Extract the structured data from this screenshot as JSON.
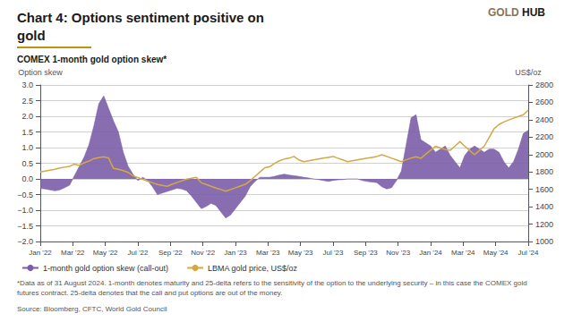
{
  "chart_data": {
    "type": "line",
    "title": "Chart 4: Options sentiment positive on\ngold",
    "subtitle": "COMEX 1-month gold option skew*",
    "ylabel": "Option skew",
    "y2label": "US$/oz",
    "x": [
      0,
      0.3,
      0.6,
      0.9,
      1.2,
      1.5,
      1.8,
      2.1,
      2.4,
      2.7,
      3,
      3.3,
      3.6,
      3.9,
      4.2,
      4.5,
      4.8,
      5.1,
      5.4,
      5.7,
      6,
      6.3,
      6.6,
      6.9,
      7.2,
      7.5,
      7.8,
      8.1,
      8.4,
      8.7,
      9,
      9.3,
      9.6,
      9.9,
      10.2,
      10.5,
      10.8,
      11.1,
      11.4,
      11.7,
      12,
      12.3,
      12.6,
      12.9,
      13.2,
      13.5,
      13.8,
      14.1,
      14.4,
      14.7,
      15,
      15.3,
      15.6,
      15.9,
      16.2,
      16.5,
      16.8,
      17.1,
      17.4,
      17.7,
      18,
      18.3,
      18.6,
      18.9,
      19.2,
      19.5,
      19.8,
      20.1,
      20.4,
      20.7,
      21,
      21.3,
      21.6,
      21.9,
      22.2,
      22.5,
      22.8,
      23.1,
      23.4,
      23.7,
      24,
      24.3,
      24.6,
      24.9,
      25.2,
      25.5,
      25.8,
      26.1,
      26.4,
      26.7,
      27,
      27.3,
      27.6,
      27.9,
      28.2,
      28.5,
      28.8,
      29.1,
      29.4,
      29.7,
      30
    ],
    "xlim": [
      0,
      30
    ],
    "xticks": [
      {
        "value": 0,
        "label": "Jan '22"
      },
      {
        "value": 2,
        "label": "Mar '22"
      },
      {
        "value": 4,
        "label": "May '22"
      },
      {
        "value": 6,
        "label": "Jul '22"
      },
      {
        "value": 8,
        "label": "Sep '22"
      },
      {
        "value": 10,
        "label": "Nov '22"
      },
      {
        "value": 12,
        "label": "Jan '23"
      },
      {
        "value": 14,
        "label": "Mar '23"
      },
      {
        "value": 16,
        "label": "May '23"
      },
      {
        "value": 18,
        "label": "Jul '23"
      },
      {
        "value": 20,
        "label": "Sep '23"
      },
      {
        "value": 22,
        "label": "Nov '23"
      },
      {
        "value": 24,
        "label": "Jan '24"
      },
      {
        "value": 26,
        "label": "Mar '24"
      },
      {
        "value": 28,
        "label": "May '24"
      },
      {
        "value": 30,
        "label": "Jul '24"
      }
    ],
    "ylim": [
      -2.0,
      3.0
    ],
    "yticks": [
      {
        "value": -2.0,
        "label": "−2.0"
      },
      {
        "value": -1.5,
        "label": "−1.5"
      },
      {
        "value": -1.0,
        "label": "−1.0"
      },
      {
        "value": -0.5,
        "label": "−0.5"
      },
      {
        "value": 0.0,
        "label": "0.0"
      },
      0.5,
      {
        "value": 1.0,
        "label": "1.0"
      },
      1.5,
      {
        "value": 2.0,
        "label": "2.0"
      },
      2.5,
      {
        "value": 3.0,
        "label": "3.0"
      }
    ],
    "y2lim": [
      1000,
      2800
    ],
    "y2ticks": [
      1000,
      1200,
      1400,
      1600,
      1800,
      2000,
      2200,
      2400,
      2600,
      2800
    ],
    "grid": true,
    "legend": "bottom",
    "series": [
      {
        "name": "1-month gold option skew (call-out)",
        "type": "area",
        "color": "#7B5EA7",
        "values": [
          -0.3,
          -0.32,
          -0.35,
          -0.38,
          -0.35,
          -0.28,
          -0.2,
          0.1,
          0.4,
          0.7,
          1.1,
          1.7,
          2.4,
          2.65,
          2.25,
          1.85,
          1.5,
          0.85,
          0.4,
          0.15,
          -0.05,
          0.05,
          -0.05,
          -0.25,
          -0.5,
          -0.45,
          -0.4,
          -0.35,
          -0.3,
          -0.32,
          -0.38,
          -0.55,
          -0.75,
          -0.95,
          -0.88,
          -0.78,
          -0.85,
          -1.05,
          -1.25,
          -1.15,
          -0.95,
          -0.75,
          -0.55,
          -0.25,
          -0.08,
          0.05,
          0.05,
          0.05,
          0.08,
          0.12,
          0.15,
          0.12,
          0.1,
          0.08,
          0.05,
          0.03,
          0.0,
          -0.02,
          -0.05,
          -0.08,
          -0.05,
          -0.03,
          -0.02,
          0.0,
          0.0,
          0.0,
          -0.05,
          -0.08,
          -0.1,
          -0.12,
          -0.25,
          -0.32,
          -0.28,
          -0.05,
          0.25,
          1.1,
          1.95,
          2.05,
          1.25,
          1.15,
          1.05,
          0.85,
          0.95,
          1.05,
          0.75,
          0.55,
          0.35,
          0.75,
          0.95,
          1.05,
          0.95,
          0.85,
          0.95,
          0.95,
          0.85,
          0.55,
          0.35,
          0.55,
          0.95,
          1.45,
          1.55
        ]
      },
      {
        "name": "LBMA gold price, US$/oz",
        "type": "line",
        "color": "#D4A843",
        "axis": "y2",
        "values": [
          1800,
          1810,
          1820,
          1830,
          1845,
          1855,
          1865,
          1890,
          1875,
          1905,
          1925,
          1955,
          1965,
          1975,
          1960,
          1840,
          1830,
          1815,
          1795,
          1755,
          1735,
          1715,
          1695,
          1675,
          1655,
          1645,
          1635,
          1658,
          1678,
          1698,
          1718,
          1728,
          1738,
          1675,
          1655,
          1635,
          1615,
          1598,
          1578,
          1598,
          1618,
          1638,
          1658,
          1698,
          1748,
          1798,
          1848,
          1858,
          1898,
          1928,
          1948,
          1958,
          1978,
          1938,
          1918,
          1928,
          1938,
          1948,
          1958,
          1968,
          1978,
          1958,
          1938,
          1918,
          1928,
          1938,
          1948,
          1958,
          1968,
          1978,
          1998,
          1978,
          1958,
          1938,
          1918,
          1940,
          1960,
          1975,
          1955,
          2005,
          2050,
          2095,
          2075,
          2058,
          2048,
          2098,
          2148,
          2095,
          2048,
          1998,
          2048,
          2098,
          2198,
          2298,
          2345,
          2375,
          2398,
          2418,
          2438,
          2458,
          2510
        ]
      }
    ],
    "annotations": [
      {
        "text": "GOLD",
        "color": "#8B7355"
      },
      {
        "text": "HUB",
        "color": "#1a1a1a"
      },
      {
        "text": "*Data as of 31 August 2024. 1-month denotes maturity and 25-delta refers to the sensitivity of the option to the underlying security – in this case the COMEX gold futures contract. 25-delta denotes that the call and put options are out of the money."
      },
      {
        "text": "Source: Bloomberg, CFTC, World Gold Council"
      }
    ]
  }
}
